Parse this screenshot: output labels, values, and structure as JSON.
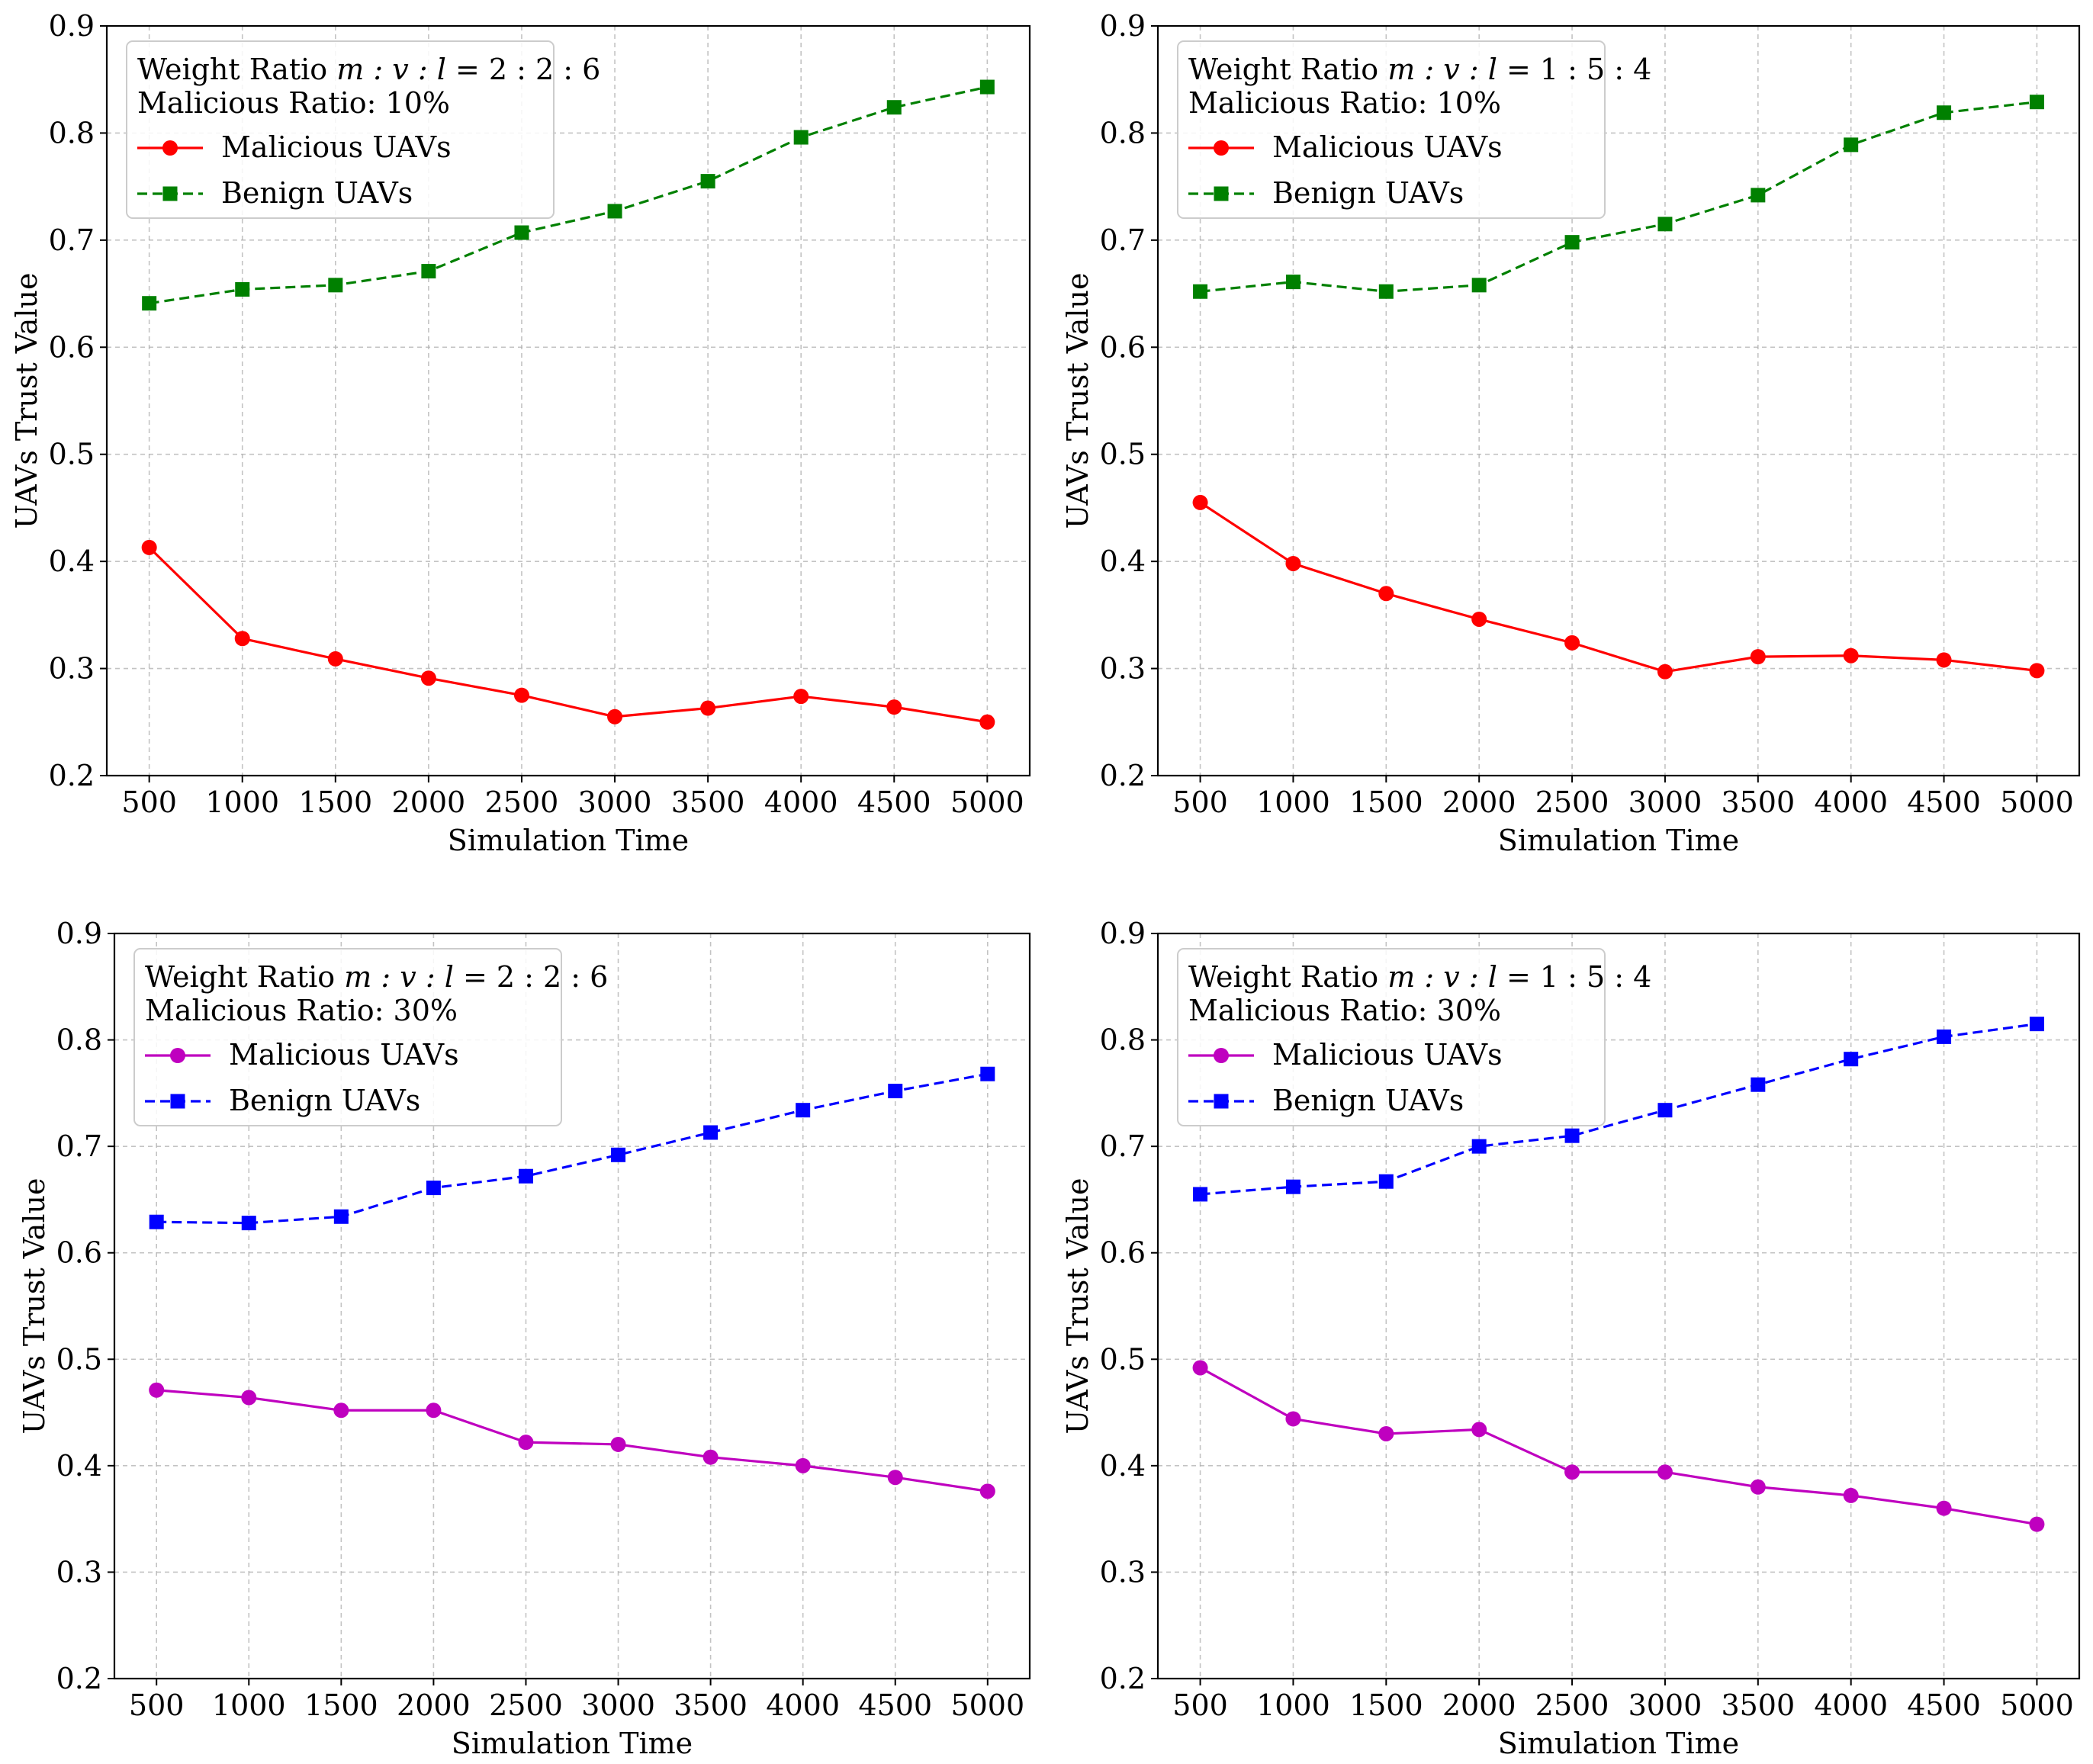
{
  "chart_data": [
    {
      "type": "line",
      "id": "p1",
      "title_lines": {
        "weight_prefix": "Weight Ratio ",
        "weight_vars": "m : v : l",
        "weight_value": " = 2 : 2 : 6",
        "malicious_ratio": "Malicious Ratio: 10%"
      },
      "xlabel": "Simulation Time",
      "ylabel": "UAVs Trust Value",
      "x": [
        500,
        1000,
        1500,
        2000,
        2500,
        3000,
        3500,
        4000,
        4500,
        5000
      ],
      "x_ticks": [
        "500",
        "1000",
        "1500",
        "2000",
        "2500",
        "3000",
        "3500",
        "4000",
        "4500",
        "5000"
      ],
      "y_ticks": [
        "0.2",
        "0.3",
        "0.4",
        "0.5",
        "0.6",
        "0.7",
        "0.8",
        "0.9"
      ],
      "ylim": [
        0.2,
        0.9
      ],
      "legend_position": "top-left",
      "series": [
        {
          "name": "Malicious UAVs",
          "color": "#ff0000",
          "style": "solid",
          "marker": "circle",
          "values": [
            0.413,
            0.328,
            0.309,
            0.291,
            0.275,
            0.255,
            0.263,
            0.274,
            0.264,
            0.25
          ]
        },
        {
          "name": "Benign UAVs",
          "color": "#008000",
          "style": "dashed",
          "marker": "square",
          "values": [
            0.641,
            0.654,
            0.658,
            0.671,
            0.707,
            0.727,
            0.755,
            0.796,
            0.824,
            0.843
          ]
        }
      ]
    },
    {
      "type": "line",
      "id": "p2",
      "title_lines": {
        "weight_prefix": "Weight Ratio ",
        "weight_vars": "m : v : l",
        "weight_value": " = 1 : 5 : 4",
        "malicious_ratio": "Malicious Ratio: 10%"
      },
      "xlabel": "Simulation Time",
      "ylabel": "UAVs Trust Value",
      "x": [
        500,
        1000,
        1500,
        2000,
        2500,
        3000,
        3500,
        4000,
        4500,
        5000
      ],
      "x_ticks": [
        "500",
        "1000",
        "1500",
        "2000",
        "2500",
        "3000",
        "3500",
        "4000",
        "4500",
        "5000"
      ],
      "y_ticks": [
        "0.2",
        "0.3",
        "0.4",
        "0.5",
        "0.6",
        "0.7",
        "0.8",
        "0.9"
      ],
      "ylim": [
        0.2,
        0.9
      ],
      "legend_position": "top-left",
      "series": [
        {
          "name": "Malicious UAVs",
          "color": "#ff0000",
          "style": "solid",
          "marker": "circle",
          "values": [
            0.455,
            0.398,
            0.37,
            0.346,
            0.324,
            0.297,
            0.311,
            0.312,
            0.308,
            0.298
          ]
        },
        {
          "name": "Benign UAVs",
          "color": "#008000",
          "style": "dashed",
          "marker": "square",
          "values": [
            0.652,
            0.661,
            0.652,
            0.658,
            0.698,
            0.715,
            0.742,
            0.789,
            0.819,
            0.829
          ]
        }
      ]
    },
    {
      "type": "line",
      "id": "p3",
      "title_lines": {
        "weight_prefix": "Weight Ratio ",
        "weight_vars": "m : v : l",
        "weight_value": " = 2 : 2 : 6",
        "malicious_ratio": "Malicious Ratio: 30%"
      },
      "xlabel": "Simulation Time",
      "ylabel": "UAVs Trust Value",
      "x": [
        500,
        1000,
        1500,
        2000,
        2500,
        3000,
        3500,
        4000,
        4500,
        5000
      ],
      "x_ticks": [
        "500",
        "1000",
        "1500",
        "2000",
        "2500",
        "3000",
        "3500",
        "4000",
        "4500",
        "5000"
      ],
      "y_ticks": [
        "0.2",
        "0.3",
        "0.4",
        "0.5",
        "0.6",
        "0.7",
        "0.8",
        "0.9"
      ],
      "ylim": [
        0.2,
        0.9
      ],
      "legend_position": "top-left",
      "series": [
        {
          "name": "Malicious UAVs",
          "color": "#bf00bf",
          "style": "solid",
          "marker": "circle",
          "values": [
            0.471,
            0.464,
            0.452,
            0.452,
            0.422,
            0.42,
            0.408,
            0.4,
            0.389,
            0.376
          ]
        },
        {
          "name": "Benign UAVs",
          "color": "#0000ff",
          "style": "dashed",
          "marker": "square",
          "values": [
            0.629,
            0.628,
            0.634,
            0.661,
            0.672,
            0.692,
            0.713,
            0.734,
            0.752,
            0.768
          ]
        }
      ]
    },
    {
      "type": "line",
      "id": "p4",
      "title_lines": {
        "weight_prefix": "Weight Ratio ",
        "weight_vars": "m : v : l",
        "weight_value": " = 1 : 5 : 4",
        "malicious_ratio": "Malicious Ratio: 30%"
      },
      "xlabel": "Simulation Time",
      "ylabel": "UAVs Trust Value",
      "x": [
        500,
        1000,
        1500,
        2000,
        2500,
        3000,
        3500,
        4000,
        4500,
        5000
      ],
      "x_ticks": [
        "500",
        "1000",
        "1500",
        "2000",
        "2500",
        "3000",
        "3500",
        "4000",
        "4500",
        "5000"
      ],
      "y_ticks": [
        "0.2",
        "0.3",
        "0.4",
        "0.5",
        "0.6",
        "0.7",
        "0.8",
        "0.9"
      ],
      "ylim": [
        0.2,
        0.9
      ],
      "legend_position": "top-left",
      "series": [
        {
          "name": "Malicious UAVs",
          "color": "#bf00bf",
          "style": "solid",
          "marker": "circle",
          "values": [
            0.492,
            0.444,
            0.43,
            0.434,
            0.394,
            0.394,
            0.38,
            0.372,
            0.36,
            0.345
          ]
        },
        {
          "name": "Benign UAVs",
          "color": "#0000ff",
          "style": "dashed",
          "marker": "square",
          "values": [
            0.655,
            0.662,
            0.667,
            0.7,
            0.71,
            0.734,
            0.758,
            0.782,
            0.803,
            0.815
          ]
        }
      ]
    }
  ]
}
